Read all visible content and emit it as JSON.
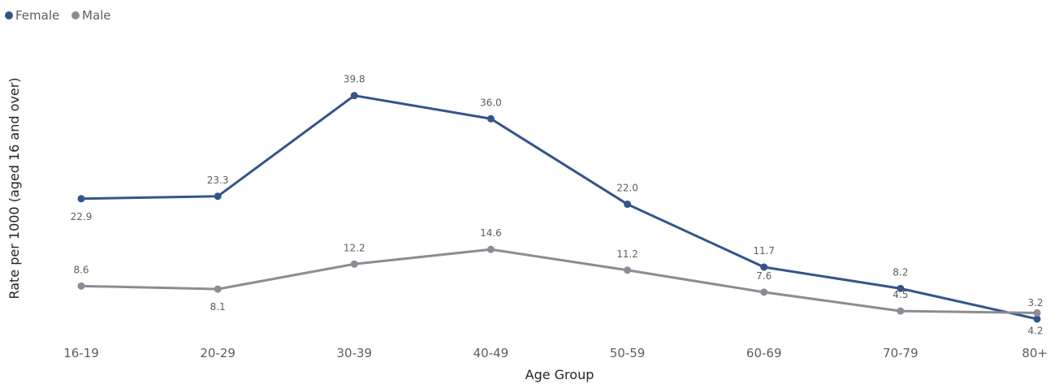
{
  "chart_data": {
    "type": "line",
    "title": "",
    "xlabel": "Age Group",
    "ylabel": "Rate per 1000 (aged 16 and over)",
    "categories": [
      "16-19",
      "20-29",
      "30-39",
      "40-49",
      "50-59",
      "60-69",
      "70-79",
      "80+"
    ],
    "series": [
      {
        "name": "Female",
        "color": "#34558b",
        "values": [
          22.9,
          23.3,
          39.8,
          36.0,
          22.0,
          11.7,
          8.2,
          3.2
        ],
        "labels": [
          "22.9",
          "23.3",
          "39.8",
          "36.0",
          "22.0",
          "11.7",
          "8.2",
          "3.2"
        ]
      },
      {
        "name": "Male",
        "color": "#8c8c94",
        "values": [
          8.6,
          8.1,
          12.2,
          14.6,
          11.2,
          7.6,
          4.5,
          4.2
        ],
        "labels": [
          "8.6",
          "8.1",
          "12.2",
          "14.6",
          "11.2",
          "7.6",
          "4.5",
          "4.2"
        ]
      }
    ],
    "ylim": [
      0,
      42
    ],
    "grid": false,
    "legend_position": "top-left"
  }
}
